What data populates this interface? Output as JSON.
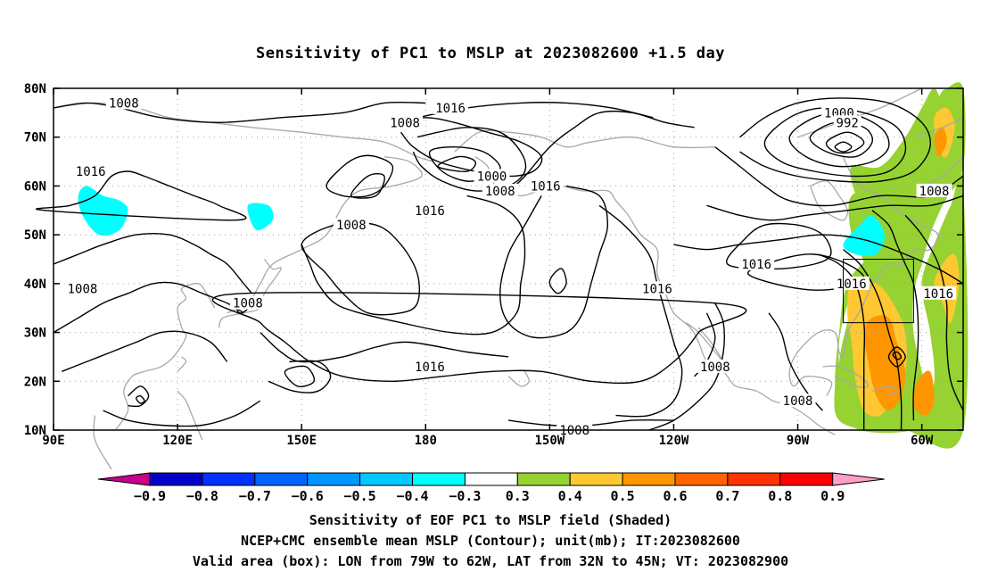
{
  "title": "Sensitivity of PC1 to MSLP at 2023082600 +1.5 day",
  "lat_labels": [
    "80N",
    "70N",
    "60N",
    "50N",
    "40N",
    "30N",
    "20N",
    "10N"
  ],
  "lon_labels": [
    "90E",
    "120E",
    "150E",
    "180",
    "150W",
    "120W",
    "90W",
    "60W"
  ],
  "contour_labels": [
    {
      "text": "1008",
      "lon": 107,
      "lat": 77
    },
    {
      "text": "1016",
      "lon": 186,
      "lat": 76
    },
    {
      "text": "1008",
      "lon": 175,
      "lat": 73
    },
    {
      "text": "1000",
      "lon": 280,
      "lat": 75
    },
    {
      "text": "992",
      "lon": 282,
      "lat": 73
    },
    {
      "text": "1016",
      "lon": 99,
      "lat": 63
    },
    {
      "text": "1000",
      "lon": 196,
      "lat": 62
    },
    {
      "text": "1016",
      "lon": 209,
      "lat": 60
    },
    {
      "text": "1008",
      "lon": 198,
      "lat": 59
    },
    {
      "text": "1016",
      "lon": 181,
      "lat": 55
    },
    {
      "text": "1008",
      "lon": 162,
      "lat": 52
    },
    {
      "text": "1008",
      "lon": 303,
      "lat": 59
    },
    {
      "text": "1016",
      "lon": 260,
      "lat": 44
    },
    {
      "text": "1016",
      "lon": 283,
      "lat": 40
    },
    {
      "text": "1016",
      "lon": 304,
      "lat": 38
    },
    {
      "text": "1008",
      "lon": 97,
      "lat": 39
    },
    {
      "text": "1008",
      "lon": 137,
      "lat": 36
    },
    {
      "text": "1016",
      "lon": 236,
      "lat": 39
    },
    {
      "text": "1016",
      "lon": 181,
      "lat": 23
    },
    {
      "text": "1008",
      "lon": 250,
      "lat": 23
    },
    {
      "text": "1008",
      "lon": 270,
      "lat": 16
    },
    {
      "text": "1008",
      "lon": 216,
      "lat": 10
    }
  ],
  "colorbar": {
    "labels": [
      "−0.9",
      "−0.8",
      "−0.7",
      "−0.6",
      "−0.5",
      "−0.4",
      "−0.3",
      "0.3",
      "0.4",
      "0.5",
      "0.6",
      "0.7",
      "0.8",
      "0.9"
    ],
    "colors": [
      "#0000c8",
      "#0032ff",
      "#0064ff",
      "#0096ff",
      "#00c8ff",
      "#00ffff",
      "#ffffff",
      "#96d232",
      "#ffc832",
      "#ff9600",
      "#ff6400",
      "#ff3200",
      "#ff0000"
    ],
    "low_color": "#c8008c",
    "high_color": "#ffa0c8"
  },
  "valid_box": {
    "lon_min": 281,
    "lon_max": 298,
    "lat_min": 32,
    "lat_max": 45
  },
  "footer": {
    "line1": "Sensitivity of EOF PC1 to MSLP field (Shaded)",
    "line2": "NCEP+CMC ensemble mean MSLP (Contour); unit(mb); IT:2023082600",
    "line3": "Valid area (box): LON from 79W to 62W, LAT from 32N to 45N; VT: 2023082900"
  }
}
